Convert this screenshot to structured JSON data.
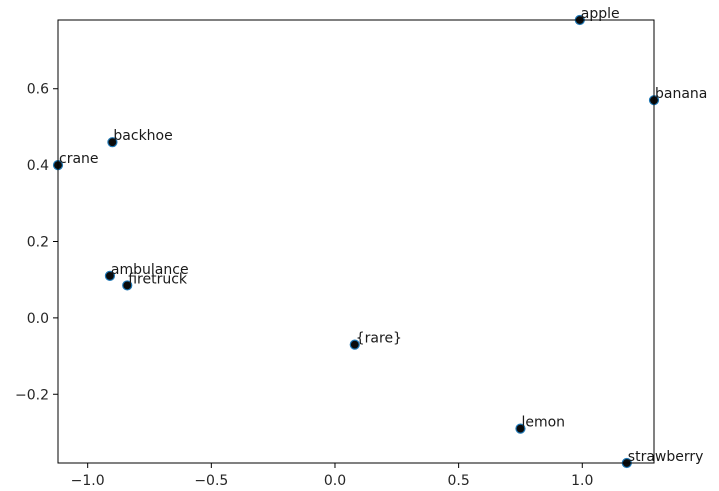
{
  "chart_data": {
    "type": "scatter",
    "title": "",
    "xlabel": "",
    "ylabel": "",
    "xlim": [
      -1.12,
      1.29
    ],
    "ylim": [
      -0.38,
      0.78
    ],
    "xticks": [
      -1.0,
      -0.5,
      0.0,
      0.5,
      1.0
    ],
    "yticks": [
      -0.2,
      0.0,
      0.2,
      0.4,
      0.6
    ],
    "xtick_labels": [
      "−1.0",
      "−0.5",
      "0.0",
      "0.5",
      "1.0"
    ],
    "ytick_labels": [
      "−0.2",
      "0.0",
      "0.2",
      "0.4",
      "0.6"
    ],
    "grid": false,
    "marker_face_color": "#0b0b0b",
    "marker_edge_color": "#1f77b4",
    "points": [
      {
        "label": "apple",
        "x": 0.99,
        "y": 0.78
      },
      {
        "label": "banana",
        "x": 1.29,
        "y": 0.57
      },
      {
        "label": "backhoe",
        "x": -0.9,
        "y": 0.46
      },
      {
        "label": "crane",
        "x": -1.12,
        "y": 0.4
      },
      {
        "label": "ambulance",
        "x": -0.91,
        "y": 0.11
      },
      {
        "label": "firetruck",
        "x": -0.84,
        "y": 0.085
      },
      {
        "label": "{rare}",
        "x": 0.08,
        "y": -0.07
      },
      {
        "label": "lemon",
        "x": 0.75,
        "y": -0.29
      },
      {
        "label": "strawberry",
        "x": 1.18,
        "y": -0.38
      }
    ]
  }
}
